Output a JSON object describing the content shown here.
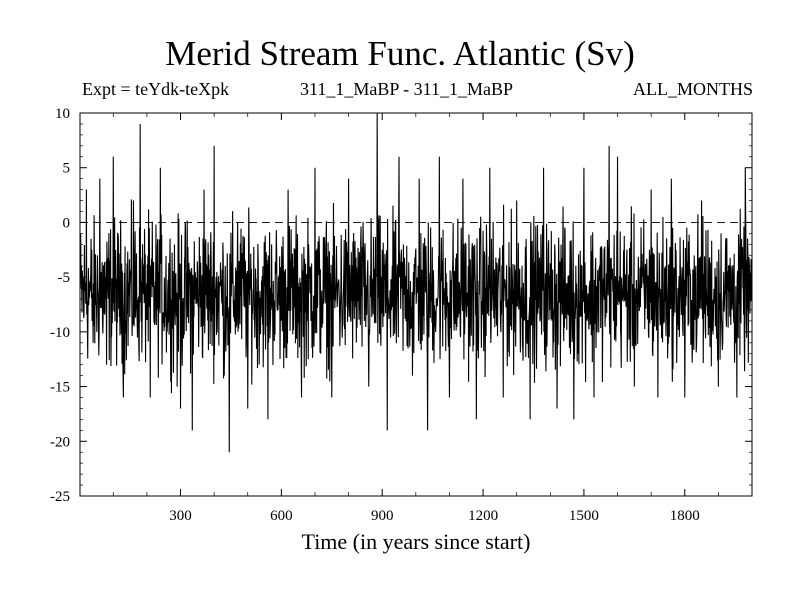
{
  "header": {
    "title": "Merid Stream Func. Atlantic (Sv)",
    "expt": "Expt = teYdk-teXpk",
    "experiment_pair": "311_1_MaBP - 311_1_MaBP",
    "months": "ALL_MONTHS"
  },
  "chart_data": {
    "type": "line",
    "title": "Merid Stream Func. Atlantic (Sv)",
    "xlabel": "Time (in years since start)",
    "ylabel": "",
    "xlim": [
      1,
      2000
    ],
    "ylim": [
      -25,
      10
    ],
    "x_ticks": [
      300,
      600,
      900,
      1200,
      1500,
      1800
    ],
    "y_ticks": [
      10,
      5,
      0,
      -5,
      -10,
      -15,
      -20,
      -25
    ],
    "reference_line": {
      "y": 0,
      "style": "dashed"
    },
    "line_color": "#000000",
    "series": [
      {
        "name": "",
        "note_sampling": "annual values, years 1-2000; listed points are characteristic extremes and mean level read from the plot",
        "mean_level": -6.5,
        "points": [
          [
            1,
            -6
          ],
          [
            20,
            3
          ],
          [
            40,
            -11
          ],
          [
            60,
            4
          ],
          [
            80,
            -13
          ],
          [
            100,
            6
          ],
          [
            130,
            -16
          ],
          [
            160,
            2
          ],
          [
            180,
            9
          ],
          [
            210,
            -16
          ],
          [
            240,
            5
          ],
          [
            290,
            -15
          ],
          [
            300,
            -17
          ],
          [
            335,
            -19
          ],
          [
            370,
            3
          ],
          [
            400,
            7
          ],
          [
            430,
            -14
          ],
          [
            445,
            -21
          ],
          [
            470,
            0
          ],
          [
            500,
            -17
          ],
          [
            510,
            -6
          ],
          [
            560,
            -18
          ],
          [
            600,
            -9
          ],
          [
            620,
            3
          ],
          [
            660,
            -16
          ],
          [
            700,
            5
          ],
          [
            750,
            -16
          ],
          [
            800,
            4
          ],
          [
            860,
            -15
          ],
          [
            885,
            10
          ],
          [
            915,
            -19
          ],
          [
            950,
            6
          ],
          [
            990,
            -14
          ],
          [
            1010,
            4
          ],
          [
            1035,
            -19
          ],
          [
            1070,
            6
          ],
          [
            1100,
            -16
          ],
          [
            1140,
            4
          ],
          [
            1180,
            -18
          ],
          [
            1220,
            5
          ],
          [
            1260,
            -16
          ],
          [
            1300,
            2
          ],
          [
            1340,
            -18
          ],
          [
            1380,
            5
          ],
          [
            1420,
            -17
          ],
          [
            1470,
            -18
          ],
          [
            1500,
            5
          ],
          [
            1530,
            -16
          ],
          [
            1575,
            7
          ],
          [
            1600,
            6
          ],
          [
            1650,
            -15
          ],
          [
            1700,
            3
          ],
          [
            1720,
            -16
          ],
          [
            1760,
            4
          ],
          [
            1800,
            -16
          ],
          [
            1850,
            2
          ],
          [
            1900,
            -15
          ],
          [
            1955,
            -16
          ],
          [
            1980,
            5
          ],
          [
            2000,
            -6
          ]
        ]
      }
    ]
  }
}
